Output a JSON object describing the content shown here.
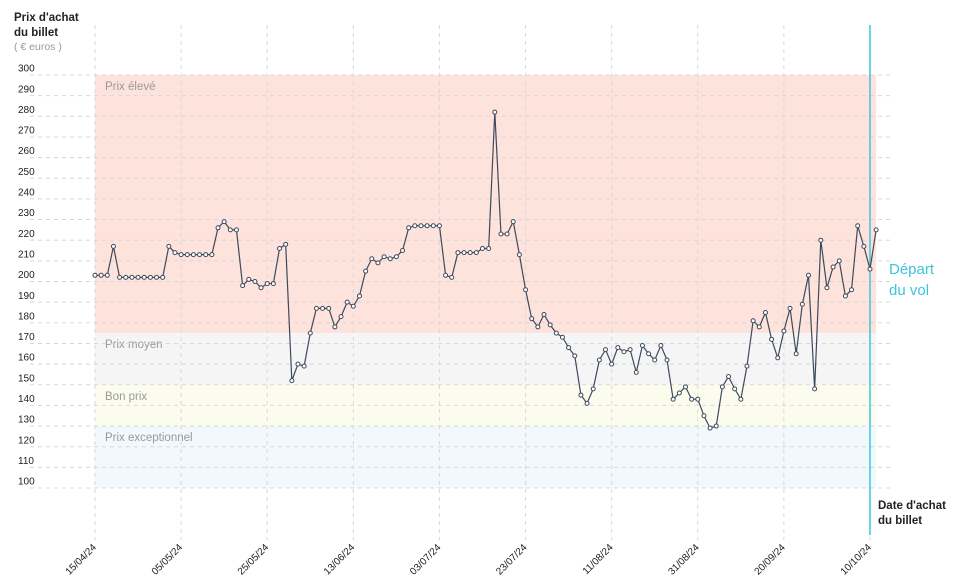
{
  "chart_data": {
    "type": "line",
    "y_title": [
      "Prix d'achat",
      "du billet"
    ],
    "y_unit": "( € euros )",
    "x_title": [
      "Date d'achat",
      "du billet"
    ],
    "departure_label": [
      "Départ",
      "du vol"
    ],
    "categories": [
      "15/04/24",
      null,
      null,
      null,
      null,
      null,
      null,
      null,
      null,
      null,
      null,
      null,
      null,
      null,
      "05/05/24",
      null,
      null,
      null,
      null,
      null,
      null,
      null,
      null,
      null,
      null,
      null,
      null,
      null,
      "25/05/24",
      null,
      null,
      null,
      null,
      null,
      null,
      null,
      null,
      null,
      null,
      null,
      null,
      null,
      "13/06/24",
      null,
      null,
      null,
      null,
      null,
      null,
      null,
      null,
      null,
      null,
      null,
      null,
      null,
      "03/07/24",
      null,
      null,
      null,
      null,
      null,
      null,
      null,
      null,
      null,
      null,
      null,
      null,
      null,
      "23/07/24",
      null,
      null,
      null,
      null,
      null,
      null,
      null,
      null,
      null,
      null,
      null,
      null,
      null,
      "11/08/24",
      null,
      null,
      null,
      null,
      null,
      null,
      null,
      null,
      null,
      null,
      null,
      null,
      null,
      "31/08/24",
      null,
      null,
      null,
      null,
      null,
      null,
      null,
      null,
      null,
      null,
      null,
      null,
      null,
      "20/09/24",
      null,
      null,
      null,
      null,
      null,
      null,
      null,
      null,
      null,
      null,
      null,
      null,
      null,
      "10/10/24",
      null
    ],
    "series": [
      {
        "color": "#3d4a5c",
        "values": [
          203,
          203,
          203,
          217,
          202,
          202,
          202,
          202,
          202,
          202,
          202,
          202,
          217,
          214,
          213,
          213,
          213,
          213,
          213,
          213,
          226,
          229,
          225,
          225,
          198,
          201,
          200,
          197,
          199,
          199,
          216,
          218,
          152,
          160,
          159,
          175,
          187,
          187,
          187,
          178,
          183,
          190,
          188,
          193,
          205,
          211,
          209,
          212,
          211,
          212,
          215,
          226,
          227,
          227,
          227,
          227,
          227,
          203,
          202,
          214,
          214,
          214,
          214,
          216,
          216,
          282,
          223,
          223,
          229,
          213,
          196,
          182,
          178,
          184,
          179,
          175,
          173,
          168,
          164,
          145,
          141,
          148,
          162,
          167,
          160,
          168,
          166,
          167,
          156,
          169,
          165,
          162,
          169,
          162,
          143,
          146,
          149,
          143,
          143,
          135,
          129,
          130,
          149,
          154,
          148,
          143,
          159,
          181,
          178,
          185,
          172,
          163,
          176,
          187,
          165,
          189,
          203,
          148,
          220,
          197,
          207,
          210,
          193,
          196,
          227,
          217,
          206,
          225
        ]
      }
    ],
    "bands": [
      {
        "label": "Prix élevé",
        "from": 175,
        "to": 300,
        "color": "#fde3dc"
      },
      {
        "label": "Prix moyen",
        "from": 150,
        "to": 175,
        "color": "#f5f5f5"
      },
      {
        "label": "Bon prix",
        "from": 130,
        "to": 150,
        "color": "#fcfcee"
      },
      {
        "label": "Prix exceptionnel",
        "from": 100,
        "to": 130,
        "color": "#f1f9fd"
      }
    ],
    "ylim": [
      100,
      300
    ],
    "yticks": [
      100,
      110,
      120,
      130,
      140,
      150,
      160,
      170,
      180,
      190,
      200,
      210,
      220,
      230,
      240,
      250,
      260,
      270,
      280,
      290,
      300
    ],
    "grid": true,
    "departure_color": "#3cc5dc"
  }
}
